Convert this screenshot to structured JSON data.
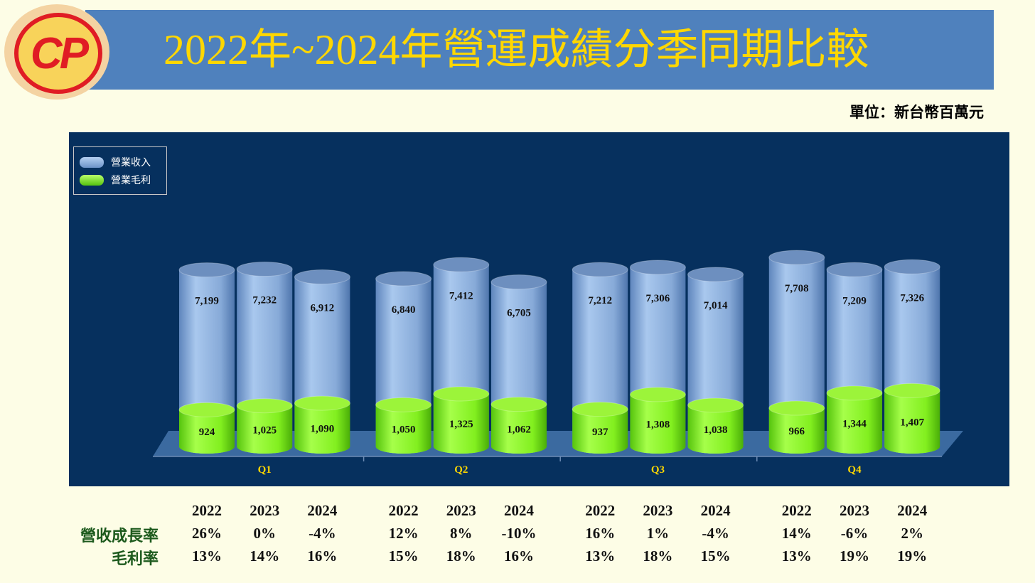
{
  "logo": {
    "text": "CP"
  },
  "title": "2022年~2024年營運成績分季同期比較",
  "unit_label": "單位：新台幣百萬元",
  "legend": [
    {
      "name": "營業收入",
      "color": "#8db4e2"
    },
    {
      "name": "營業毛利",
      "color": "#7fee1e"
    }
  ],
  "chart_data": {
    "type": "bar",
    "categories": [
      "Q1",
      "Q2",
      "Q3",
      "Q4"
    ],
    "groups": [
      "2022",
      "2023",
      "2024"
    ],
    "series": [
      {
        "name": "營業收入",
        "values": [
          [
            7199,
            7232,
            6912
          ],
          [
            6840,
            7412,
            6705
          ],
          [
            7212,
            7306,
            7014
          ],
          [
            7708,
            7209,
            7326
          ]
        ]
      },
      {
        "name": "營業毛利",
        "values": [
          [
            924,
            1025,
            1090
          ],
          [
            1050,
            1325,
            1062
          ],
          [
            937,
            1308,
            1038
          ],
          [
            966,
            1344,
            1407
          ]
        ]
      }
    ],
    "revenue_labels": [
      [
        "7,199",
        "7,232",
        "6,912"
      ],
      [
        "6,840",
        "7,412",
        "6,705"
      ],
      [
        "7,212",
        "7,306",
        "7,014"
      ],
      [
        "7,708",
        "7,209",
        "7,326"
      ]
    ],
    "profit_labels": [
      [
        "924",
        "1,025",
        "1,090"
      ],
      [
        "1,050",
        "1,325",
        "1,062"
      ],
      [
        "937",
        "1,308",
        "1,038"
      ],
      [
        "966",
        "1,344",
        "1,407"
      ]
    ],
    "colors": {
      "revenue": "#8db4e2",
      "profit": "#7fee1e",
      "background": "#06305e",
      "floor": "#3b6aa0",
      "category_label": "#ffd700"
    }
  },
  "table": {
    "years": [
      "2022",
      "2023",
      "2024",
      "2022",
      "2023",
      "2024",
      "2022",
      "2023",
      "2024",
      "2022",
      "2023",
      "2024"
    ],
    "growth_label": "營收成長率",
    "growth": [
      "26%",
      "0%",
      "-4%",
      "12%",
      "8%",
      "-10%",
      "16%",
      "1%",
      "-4%",
      "14%",
      "-6%",
      "2%"
    ],
    "margin_label": "毛利率",
    "margin": [
      "13%",
      "14%",
      "16%",
      "15%",
      "18%",
      "16%",
      "13%",
      "18%",
      "15%",
      "13%",
      "19%",
      "19%"
    ]
  }
}
